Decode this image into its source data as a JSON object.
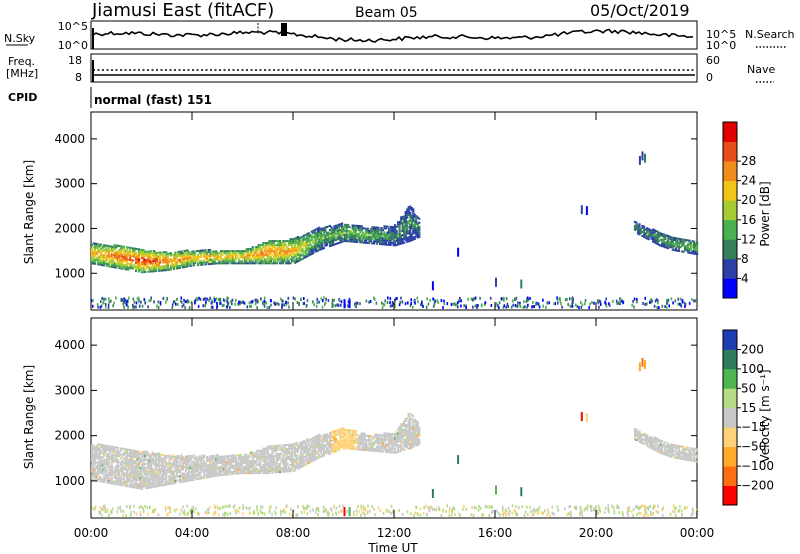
{
  "header": {
    "station": "Jiamusi East (fitACF)",
    "beam": "Beam 05",
    "date": "05/Oct/2019"
  },
  "strips": {
    "nsky_label": "N.Sky",
    "nsky_ticks": [
      "10^5",
      "10^0"
    ],
    "nsearch_label": "N.Search",
    "nsearch_ticks": [
      "10^5",
      "10^0"
    ],
    "freq_label_1": "Freq.",
    "freq_label_2": "[MHz]",
    "freq_ticks": [
      "18",
      "8"
    ],
    "nave_label": "Nave",
    "nave_ticks": [
      "60",
      "0"
    ],
    "cpid_label": "CPID",
    "cpid_value": "normal (fast) 151"
  },
  "axes": {
    "xlabel": "Time UT",
    "x_ticks": [
      "00:00",
      "04:00",
      "08:00",
      "12:00",
      "16:00",
      "20:00",
      "00:00"
    ],
    "ylabel": "Slant Range [km]",
    "y_ticks": [
      "1000",
      "2000",
      "3000",
      "4000"
    ]
  },
  "power_colorbar": {
    "label": "Power [dB]",
    "ticks": [
      "4",
      "8",
      "12",
      "16",
      "20",
      "24",
      "28"
    ],
    "colors": [
      "#0000ff",
      "#2b3fa6",
      "#357e5a",
      "#4caf50",
      "#a6cc33",
      "#f2c419",
      "#f08c19",
      "#e84c19",
      "#e00000"
    ]
  },
  "velocity_colorbar": {
    "label": "Velocity [m s⁻¹]",
    "ticks": [
      "200",
      "100",
      "50",
      "15",
      "−15",
      "−50",
      "−100",
      "−200"
    ],
    "colors": [
      "#1e3cb4",
      "#2e7d5a",
      "#50b450",
      "#b4dc82",
      "#c8c8c8",
      "#ffd278",
      "#ffaa28",
      "#ff6e14",
      "#ff0000"
    ]
  },
  "chart_data": [
    {
      "type": "heatmap",
      "title": "Power",
      "xlabel": "Time UT",
      "ylabel": "Slant Range [km]",
      "xlim": [
        0,
        24
      ],
      "ylim": [
        180,
        4600
      ],
      "colorbar": "Power [dB]",
      "series": [
        {
          "name": "main_echo_band",
          "x": [
            0,
            1,
            2,
            3,
            4,
            5,
            6,
            7,
            8,
            9,
            10,
            11,
            12,
            12.6,
            13
          ],
          "y_low": [
            1200,
            1100,
            1000,
            1050,
            1150,
            1200,
            1200,
            1200,
            1200,
            1500,
            1700,
            1650,
            1600,
            1700,
            1800
          ],
          "y_high": [
            1650,
            1600,
            1500,
            1450,
            1500,
            1500,
            1500,
            1700,
            1750,
            2000,
            2100,
            2000,
            2050,
            2500,
            2200
          ],
          "value_db": [
            20,
            24,
            28,
            24,
            20,
            20,
            20,
            24,
            20,
            12,
            12,
            12,
            8,
            8,
            8
          ]
        },
        {
          "name": "late_band",
          "x": [
            21.5,
            22,
            22.5,
            23,
            23.5,
            24
          ],
          "y_low": [
            1900,
            1750,
            1600,
            1500,
            1450,
            1400
          ],
          "y_high": [
            2150,
            2000,
            1900,
            1800,
            1750,
            1700
          ],
          "value_db": [
            8,
            8,
            10,
            10,
            12,
            12
          ]
        }
      ]
    },
    {
      "type": "heatmap",
      "title": "Velocity",
      "xlabel": "Time UT",
      "ylabel": "Slant Range [km]",
      "xlim": [
        0,
        24
      ],
      "ylim": [
        180,
        4600
      ],
      "colorbar": "Velocity [m s⁻¹]",
      "series": [
        {
          "name": "main_echo_band",
          "x": [
            0,
            1,
            2,
            3,
            4,
            5,
            6,
            7,
            8,
            9,
            10,
            11,
            12,
            12.6,
            13
          ],
          "y_low": [
            1000,
            900,
            800,
            900,
            1000,
            1100,
            1150,
            1150,
            1200,
            1500,
            1700,
            1650,
            1600,
            1700,
            1800
          ],
          "y_high": [
            1800,
            1750,
            1650,
            1550,
            1550,
            1550,
            1550,
            1750,
            1800,
            2000,
            2150,
            2000,
            2050,
            2500,
            2200
          ],
          "velocity": [
            0,
            0,
            0,
            0,
            0,
            0,
            0,
            0,
            0,
            -10,
            -20,
            -10,
            0,
            0,
            0
          ]
        },
        {
          "name": "late_band",
          "x": [
            21.5,
            22,
            22.5,
            23,
            23.5,
            24
          ],
          "y_low": [
            1900,
            1750,
            1600,
            1500,
            1450,
            1400
          ],
          "y_high": [
            2150,
            2000,
            1900,
            1800,
            1750,
            1700
          ],
          "velocity": [
            0,
            0,
            0,
            0,
            0,
            0
          ]
        }
      ]
    }
  ]
}
